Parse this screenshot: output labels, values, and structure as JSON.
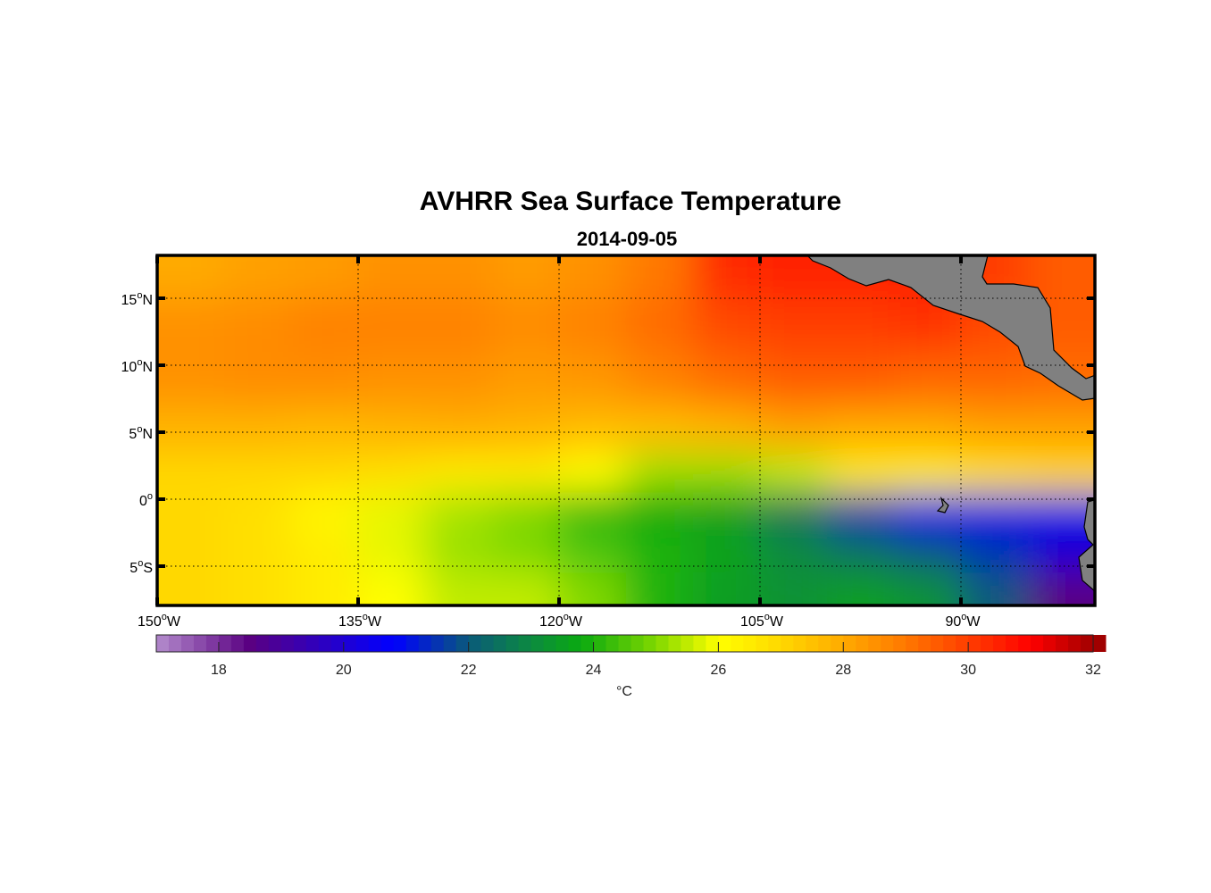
{
  "chart_data": {
    "type": "heatmap",
    "title": "AVHRR Sea Surface Temperature",
    "subtitle": "2014-09-05",
    "degree_symbol": "o",
    "lon_range": [
      -150,
      -80
    ],
    "lat_range": [
      -8,
      18.2
    ],
    "x_ticks": [
      {
        "value": -150,
        "deg": "150",
        "hemi": "W"
      },
      {
        "value": -135,
        "deg": "135",
        "hemi": "W"
      },
      {
        "value": -120,
        "deg": "120",
        "hemi": "W"
      },
      {
        "value": -105,
        "deg": "105",
        "hemi": "W"
      },
      {
        "value": -90,
        "deg": "90",
        "hemi": "W"
      }
    ],
    "y_ticks": [
      {
        "value": 15,
        "deg": "15",
        "hemi": "N"
      },
      {
        "value": 10,
        "deg": "10",
        "hemi": "N"
      },
      {
        "value": 5,
        "deg": "5",
        "hemi": "N"
      },
      {
        "value": 0,
        "deg": "0",
        "hemi": ""
      },
      {
        "value": -5,
        "deg": "5",
        "hemi": "S"
      }
    ],
    "grid": true,
    "colorbar": {
      "label": "°C",
      "range": [
        17,
        32
      ],
      "ticks": [
        "18",
        "20",
        "22",
        "24",
        "26",
        "28",
        "30",
        "32"
      ],
      "tick_values": [
        18,
        20,
        22,
        24,
        26,
        28,
        30,
        32
      ]
    },
    "sst_grid": {
      "lon": [
        -147.5,
        -142.5,
        -137.5,
        -132.5,
        -127.5,
        -122.5,
        -117.5,
        -112.5,
        -107.5,
        -102.5,
        -97.5,
        -92.5,
        -87.5,
        -82.5
      ],
      "lat": [
        17,
        13,
        9,
        5,
        2,
        -1,
        -4,
        -7
      ],
      "values": [
        [
          28.0,
          28.2,
          28.3,
          28.5,
          28.5,
          28.3,
          28.5,
          29.0,
          30.3,
          30.5,
          30.5,
          30.5,
          30.0,
          29.5
        ],
        [
          28.5,
          28.6,
          28.8,
          28.8,
          28.8,
          28.6,
          28.8,
          29.2,
          29.8,
          30.0,
          30.0,
          30.2,
          29.8,
          29.5
        ],
        [
          28.5,
          28.6,
          28.6,
          28.5,
          28.5,
          28.3,
          28.4,
          28.8,
          29.2,
          29.5,
          29.5,
          29.3,
          29.3,
          29.2
        ],
        [
          27.8,
          27.8,
          27.7,
          27.8,
          27.9,
          27.8,
          27.6,
          27.6,
          27.8,
          28.2,
          28.0,
          28.0,
          28.2,
          28.2
        ],
        [
          27.0,
          27.0,
          27.0,
          26.8,
          26.5,
          26.5,
          26.0,
          25.2,
          25.2,
          25.5,
          26.5,
          26.5,
          26.8,
          27.0
        ],
        [
          27.0,
          26.8,
          26.2,
          25.8,
          25.3,
          25.0,
          24.2,
          23.8,
          23.5,
          22.5,
          21.5,
          21.0,
          21.0,
          21.0
        ],
        [
          27.0,
          26.8,
          26.5,
          25.8,
          25.2,
          25.0,
          24.5,
          24.0,
          23.6,
          23.0,
          22.5,
          22.0,
          21.5,
          20.0
        ],
        [
          27.0,
          26.8,
          26.5,
          26.0,
          25.5,
          25.5,
          25.0,
          24.0,
          23.5,
          23.2,
          23.5,
          23.2,
          22.0,
          18.5
        ]
      ]
    },
    "colormap": [
      [
        17,
        "#b48ccd"
      ],
      [
        18.5,
        "#5a0082"
      ],
      [
        20.8,
        "#0000ff"
      ],
      [
        22,
        "#0a5a7a"
      ],
      [
        23,
        "#0c8a40"
      ],
      [
        23.8,
        "#0aaa10"
      ],
      [
        25,
        "#80d800"
      ],
      [
        26,
        "#ffff00"
      ],
      [
        27,
        "#ffd800"
      ],
      [
        28,
        "#ffaa00"
      ],
      [
        29,
        "#ff7800"
      ],
      [
        30.5,
        "#ff2000"
      ],
      [
        31,
        "#ff0000"
      ],
      [
        32,
        "#a00000"
      ]
    ],
    "land_color": "#808080"
  }
}
